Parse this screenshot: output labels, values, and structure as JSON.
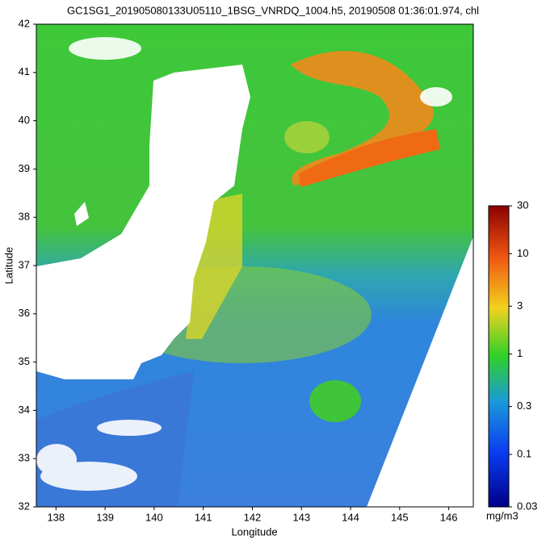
{
  "title": "GC1SG1_201905080133U05110_1BSG_VNRDQ_1004.h5, 20190508 01:36:01.974, chl",
  "map": {
    "xlabel": "Longitude",
    "ylabel": "Latitude",
    "xlim": [
      137.6,
      146.5
    ],
    "xticks": [
      138,
      139,
      140,
      141,
      142,
      143,
      144,
      145,
      146
    ],
    "ylim": [
      32,
      42
    ],
    "yticks": [
      32,
      33,
      34,
      35,
      36,
      37,
      38,
      39,
      40,
      41,
      42
    ]
  },
  "colorbar": {
    "scale": "log",
    "unit": "mg/m3",
    "lim": [
      0.03,
      30
    ],
    "ticks": [
      0.03,
      0.1,
      0.3,
      1,
      3,
      10,
      30
    ]
  }
}
